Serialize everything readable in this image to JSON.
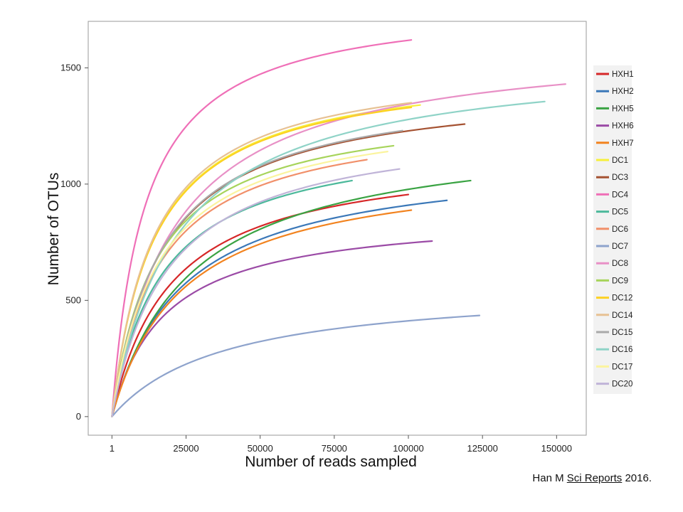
{
  "citation": {
    "author": "Han M",
    "journal": "Sci Reports",
    "year": "2016."
  },
  "chart_data": {
    "type": "line",
    "title": "",
    "xlabel": "Number of reads sampled",
    "ylabel": "Number of OTUs",
    "xlim": [
      -8000,
      160000
    ],
    "ylim": [
      -80,
      1700
    ],
    "x_ticks": [
      1,
      25000,
      50000,
      75000,
      100000,
      125000,
      150000
    ],
    "x_tick_labels": [
      "1",
      "25000",
      "50000",
      "75000",
      "100000",
      "125000",
      "150000"
    ],
    "y_ticks": [
      0,
      500,
      1000,
      1500
    ],
    "y_tick_labels": [
      "0",
      "500",
      "1000",
      "1500"
    ],
    "grid": false,
    "legend_position": "right",
    "series": [
      {
        "name": "HXH1",
        "color": "#d62728",
        "x_end": 100000,
        "y_end": 955,
        "max": 1210,
        "half": 20000
      },
      {
        "name": "HXH2",
        "color": "#3b78b8",
        "x_end": 113000,
        "y_end": 930,
        "max": 1150,
        "half": 24000
      },
      {
        "name": "HXH5",
        "color": "#3aa343",
        "x_end": 121000,
        "y_end": 1015,
        "max": 1310,
        "half": 27000
      },
      {
        "name": "HXH6",
        "color": "#9b4ba6",
        "x_end": 108000,
        "y_end": 755,
        "max": 910,
        "half": 18000
      },
      {
        "name": "HXH7",
        "color": "#f2831f",
        "x_end": 101000,
        "y_end": 888,
        "max": 1130,
        "half": 24000
      },
      {
        "name": "DC1",
        "color": "#f7f03a",
        "x_end": 104000,
        "y_end": 1340,
        "max": 1560,
        "half": 14000
      },
      {
        "name": "DC3",
        "color": "#a55232",
        "x_end": 119000,
        "y_end": 1258,
        "max": 1480,
        "half": 17000
      },
      {
        "name": "DC4",
        "color": "#ef6fb7",
        "x_end": 101000,
        "y_end": 1620,
        "max": 1820,
        "half": 11000
      },
      {
        "name": "DC5",
        "color": "#4cb99b",
        "x_end": 81000,
        "y_end": 1015,
        "max": 1280,
        "half": 17000
      },
      {
        "name": "DC6",
        "color": "#f1906a",
        "x_end": 86000,
        "y_end": 1105,
        "max": 1360,
        "half": 16000
      },
      {
        "name": "DC7",
        "color": "#8ea3cc",
        "x_end": 124000,
        "y_end": 435,
        "max": 600,
        "half": 38000
      },
      {
        "name": "DC8",
        "color": "#e890c6",
        "x_end": 153000,
        "y_end": 1430,
        "max": 1670,
        "half": 21000
      },
      {
        "name": "DC9",
        "color": "#a7d45b",
        "x_end": 95000,
        "y_end": 1165,
        "max": 1390,
        "half": 15000
      },
      {
        "name": "DC12",
        "color": "#fcd123",
        "x_end": 101000,
        "y_end": 1330,
        "max": 1560,
        "half": 14000
      },
      {
        "name": "DC14",
        "color": "#e7c193",
        "x_end": 101000,
        "y_end": 1350,
        "max": 1590,
        "half": 14000
      },
      {
        "name": "DC15",
        "color": "#a9a9a9",
        "x_end": 98000,
        "y_end": 1230,
        "max": 1470,
        "half": 17000
      },
      {
        "name": "DC16",
        "color": "#8fd3c7",
        "x_end": 146000,
        "y_end": 1355,
        "max": 1590,
        "half": 22000
      },
      {
        "name": "DC17",
        "color": "#fbf49e",
        "x_end": 93000,
        "y_end": 1140,
        "max": 1370,
        "half": 16000
      },
      {
        "name": "DC20",
        "color": "#c0b4d8",
        "x_end": 97000,
        "y_end": 1065,
        "max": 1310,
        "half": 19000
      }
    ]
  }
}
